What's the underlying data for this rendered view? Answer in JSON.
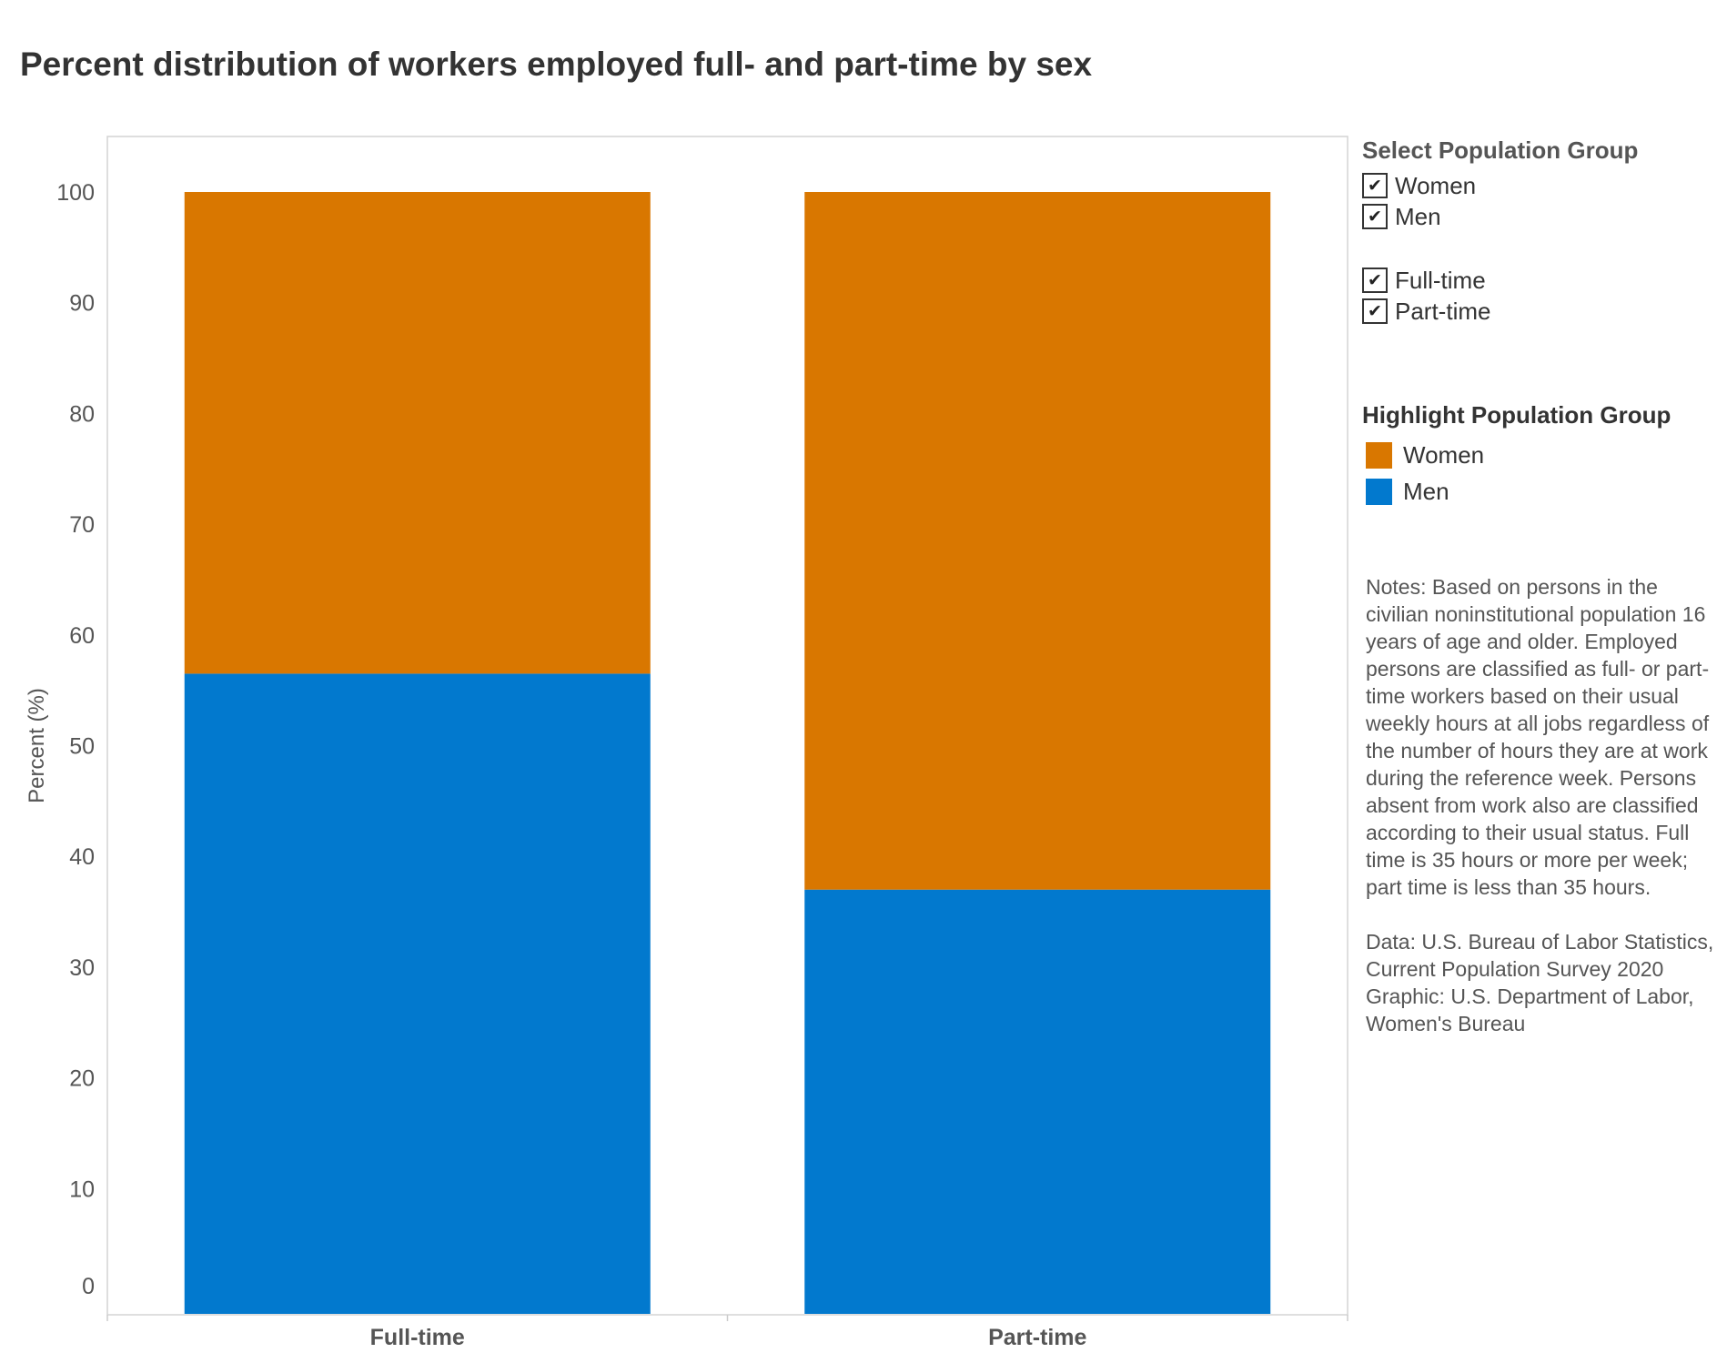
{
  "title": "Percent distribution of workers employed full- and part-time by sex",
  "chart_data": {
    "type": "bar",
    "stacked": true,
    "categories": [
      "Full-time",
      "Part-time"
    ],
    "series": [
      {
        "name": "Men",
        "values": [
          56.5,
          37.0
        ],
        "color": "#0279ce"
      },
      {
        "name": "Women",
        "values": [
          43.5,
          63.0
        ],
        "color": "#d97700"
      }
    ],
    "ylabel": "Percent (%)",
    "xlabel": "",
    "ylim": [
      0,
      100
    ],
    "yticks": [
      0,
      10,
      20,
      30,
      40,
      50,
      60,
      70,
      80,
      90,
      100
    ],
    "grid": false,
    "legend_placement": "right"
  },
  "filters": {
    "heading": "Select Population Group",
    "sex_options": [
      {
        "label": "Women",
        "checked": true
      },
      {
        "label": "Men",
        "checked": true
      }
    ],
    "status_options": [
      {
        "label": "Full-time",
        "checked": true
      },
      {
        "label": "Part-time",
        "checked": true
      }
    ],
    "check_glyph": "✔"
  },
  "highlight": {
    "heading": "Highlight Population Group",
    "items": [
      {
        "label": "Women",
        "color": "#d97700"
      },
      {
        "label": "Men",
        "color": "#0279ce"
      }
    ]
  },
  "notes": "Notes: Based on persons in the civilian noninstitutional population 16 years of age and older. Employed persons are classified as full- or part-time workers based on their usual weekly hours at all jobs regardless of the number of hours they are at work during the reference week. Persons absent from work also are classified according to their usual status. Full time is 35 hours or more per week; part time is less than 35 hours.",
  "source": {
    "data": "Data: U.S. Bureau of Labor Statistics, Current Population Survey 2020",
    "graphic": "Graphic: U.S. Department of Labor, Women's Bureau"
  }
}
